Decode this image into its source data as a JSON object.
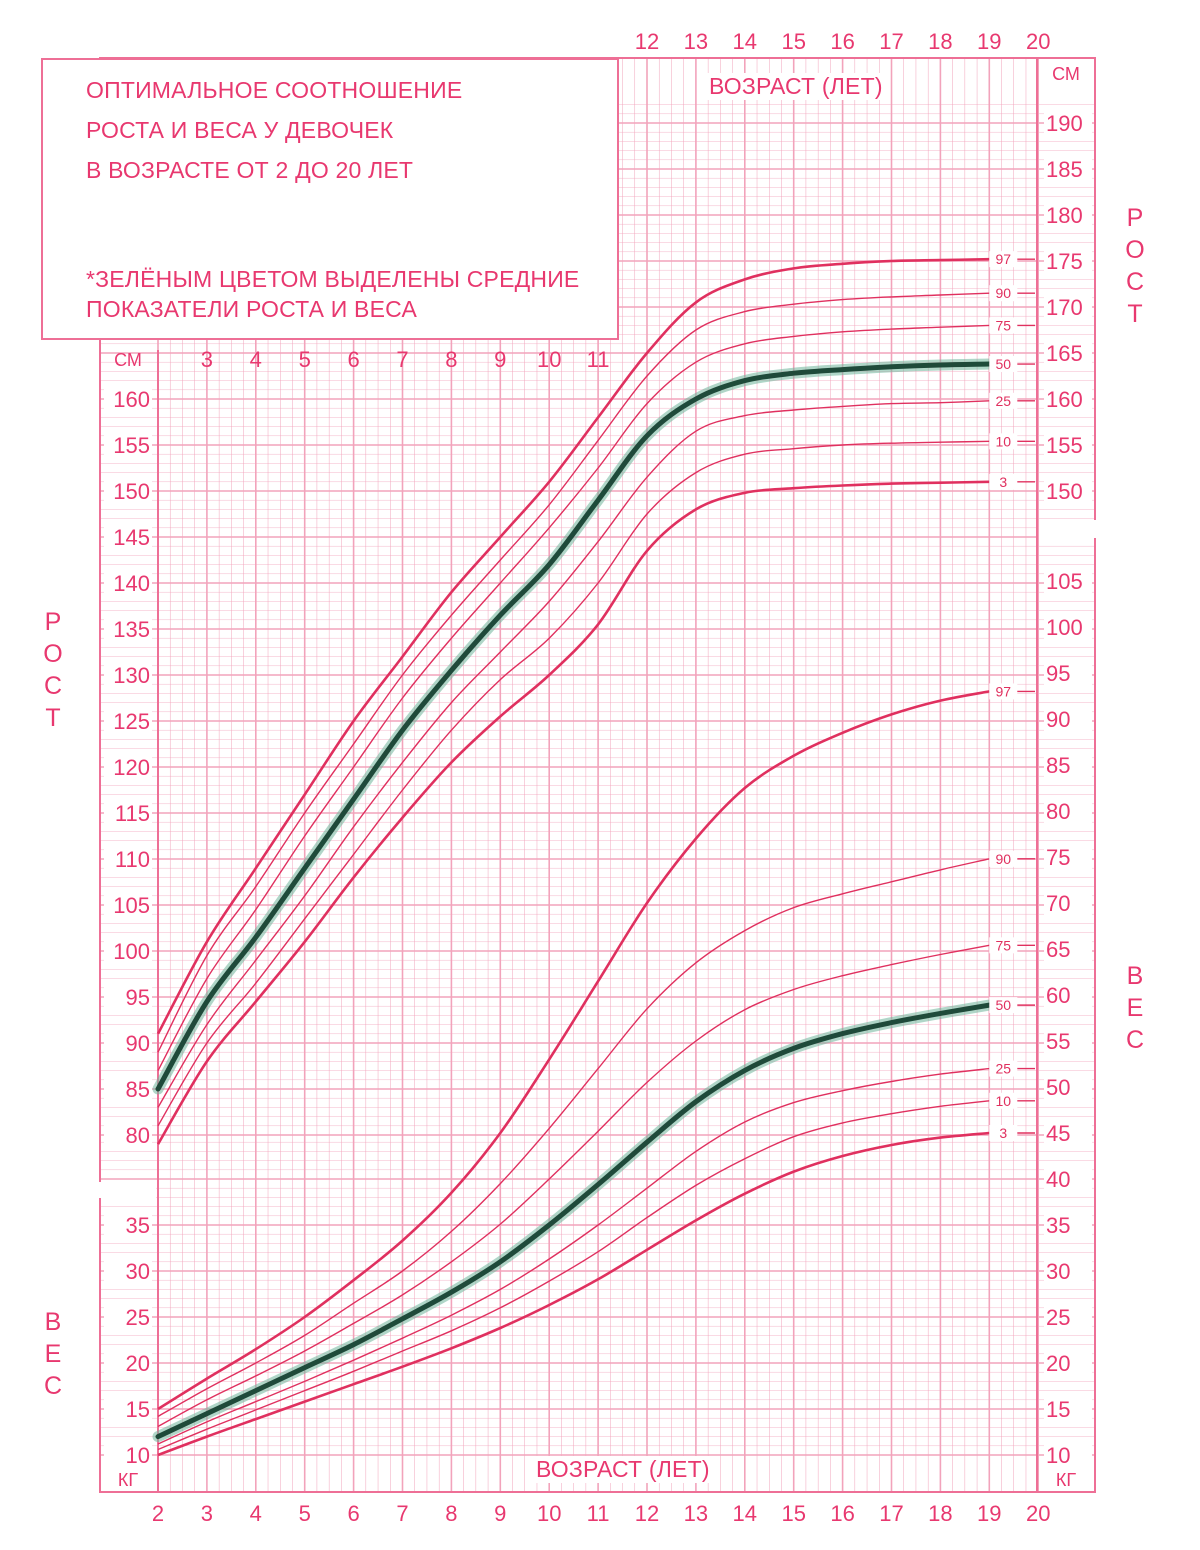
{
  "title": {
    "line1": "ОПТИМАЛЬНОЕ СООТНОШЕНИЕ",
    "line2": "РОСТА И ВЕСА У ДЕВОЧЕК",
    "line3": "В ВОЗРАСТЕ ОТ 2 ДО 20 ЛЕТ",
    "note1": "*ЗЕЛЁНЫМ ЦВЕТОМ ВЫДЕЛЕНЫ СРЕДНИЕ",
    "note2": "ПОКАЗАТЕЛИ РОСТА И ВЕСА"
  },
  "labels": {
    "age_top": "ВОЗРАСТ (ЛЕТ)",
    "age_bottom": "ВОЗРАСТ (ЛЕТ)",
    "height_left": [
      "Р",
      "О",
      "С",
      "Т"
    ],
    "height_right": [
      "Р",
      "О",
      "С",
      "Т"
    ],
    "weight_left": [
      "В",
      "Е",
      "С"
    ],
    "weight_right": [
      "В",
      "Е",
      "С"
    ],
    "unit_cm": "СМ",
    "unit_kg": "КГ"
  },
  "colors": {
    "grid": "#f2a3bb",
    "axis_text": "#e8386f",
    "curve": "#e0305f",
    "median_curve": "#1f4a3a"
  },
  "chart_data": {
    "type": "line",
    "x_ticks_bottom": [
      2,
      3,
      4,
      5,
      6,
      7,
      8,
      9,
      10,
      11,
      12,
      13,
      14,
      15,
      16,
      17,
      18,
      19,
      20
    ],
    "x_ticks_top": [
      12,
      13,
      14,
      15,
      16,
      17,
      18,
      19,
      20
    ],
    "x_ticks_top_inner": [
      3,
      4,
      5,
      6,
      7,
      8,
      9,
      10,
      11
    ],
    "height_ticks_left": [
      80,
      85,
      90,
      95,
      100,
      105,
      110,
      115,
      120,
      125,
      130,
      135,
      140,
      145,
      150,
      155,
      160
    ],
    "height_ticks_right": [
      150,
      155,
      160,
      165,
      170,
      175,
      180,
      185,
      190
    ],
    "weight_ticks_left": [
      10,
      15,
      20,
      25,
      30,
      35
    ],
    "weight_ticks_right": [
      10,
      15,
      20,
      25,
      30,
      35,
      40,
      45,
      50,
      55,
      60,
      65,
      70,
      75,
      80,
      85,
      90,
      95,
      100,
      105
    ],
    "x": [
      2,
      3,
      4,
      5,
      6,
      7,
      8,
      9,
      10,
      11,
      12,
      13,
      14,
      15,
      16,
      17,
      18,
      19
    ],
    "height_series": [
      {
        "name": "97",
        "values": [
          91,
          101,
          109,
          117,
          125,
          132,
          139,
          145,
          151,
          158,
          165,
          170.5,
          173,
          174.2,
          174.7,
          175,
          175.1,
          175.2
        ]
      },
      {
        "name": "90",
        "values": [
          89,
          99.5,
          107,
          115,
          122.5,
          130,
          136.5,
          142.5,
          148.5,
          155.5,
          162.5,
          167.5,
          169.5,
          170.3,
          170.8,
          171.1,
          171.3,
          171.5
        ]
      },
      {
        "name": "75",
        "values": [
          87,
          97,
          104.5,
          112.5,
          120,
          127.5,
          134,
          140,
          146,
          152.5,
          159.5,
          164,
          166,
          166.8,
          167.3,
          167.6,
          167.8,
          168
        ]
      },
      {
        "name": "50",
        "values": [
          85,
          94.5,
          101.5,
          109,
          116.5,
          124,
          130.5,
          136.5,
          142,
          149,
          156,
          160,
          162,
          162.8,
          163.2,
          163.5,
          163.7,
          163.8
        ]
      },
      {
        "name": "25",
        "values": [
          83,
          92,
          99,
          106,
          113.5,
          120.5,
          127,
          132.5,
          138,
          144.5,
          151.5,
          156.5,
          158.2,
          158.8,
          159.2,
          159.5,
          159.6,
          159.8
        ]
      },
      {
        "name": "10",
        "values": [
          81,
          90,
          96.5,
          103.5,
          110.5,
          117.5,
          124,
          129.5,
          134,
          140,
          147.5,
          152,
          154,
          154.6,
          155,
          155.2,
          155.3,
          155.4
        ]
      },
      {
        "name": "3",
        "values": [
          79,
          88,
          94.5,
          101,
          108,
          114.5,
          120.5,
          125.5,
          130,
          135.5,
          143.5,
          148,
          149.8,
          150.3,
          150.6,
          150.8,
          150.9,
          151
        ]
      }
    ],
    "weight_series": [
      {
        "name": "97",
        "values": [
          15,
          18.3,
          21.5,
          25,
          29,
          33.3,
          38.5,
          45,
          53,
          61.5,
          70,
          77,
          82.5,
          86,
          88.5,
          90.5,
          92,
          93
        ]
      },
      {
        "name": "90",
        "values": [
          14.2,
          17.2,
          20,
          23,
          26.5,
          30,
          34.3,
          39.5,
          45.5,
          52,
          58.5,
          63.5,
          67,
          69.5,
          71,
          72.3,
          73.6,
          74.8
        ]
      },
      {
        "name": "75",
        "values": [
          13.1,
          16,
          18.6,
          21.3,
          24.3,
          27.4,
          31,
          35.1,
          40,
          45.2,
          50.5,
          55,
          58.4,
          60.6,
          62.1,
          63.3,
          64.4,
          65.4
        ]
      },
      {
        "name": "50",
        "values": [
          12,
          14.5,
          17,
          19.5,
          22,
          24.8,
          27.7,
          31,
          35,
          39.4,
          44,
          48.4,
          51.8,
          54.2,
          55.8,
          57,
          58,
          58.9
        ]
      },
      {
        "name": "25",
        "values": [
          11.2,
          13.6,
          15.8,
          18,
          20.3,
          22.7,
          25.2,
          28,
          31.3,
          35,
          39,
          43,
          46.2,
          48.3,
          49.6,
          50.6,
          51.4,
          52
        ]
      },
      {
        "name": "10",
        "values": [
          10.6,
          12.8,
          14.9,
          17,
          19.1,
          21.3,
          23.5,
          26,
          28.9,
          32.1,
          35.8,
          39.3,
          42.2,
          44.6,
          46.1,
          47.1,
          47.9,
          48.5
        ]
      },
      {
        "name": "3",
        "values": [
          10,
          12,
          13.9,
          15.8,
          17.7,
          19.6,
          21.6,
          23.8,
          26.3,
          29.1,
          32.3,
          35.5,
          38.4,
          40.8,
          42.5,
          43.7,
          44.5,
          45
        ]
      }
    ]
  }
}
